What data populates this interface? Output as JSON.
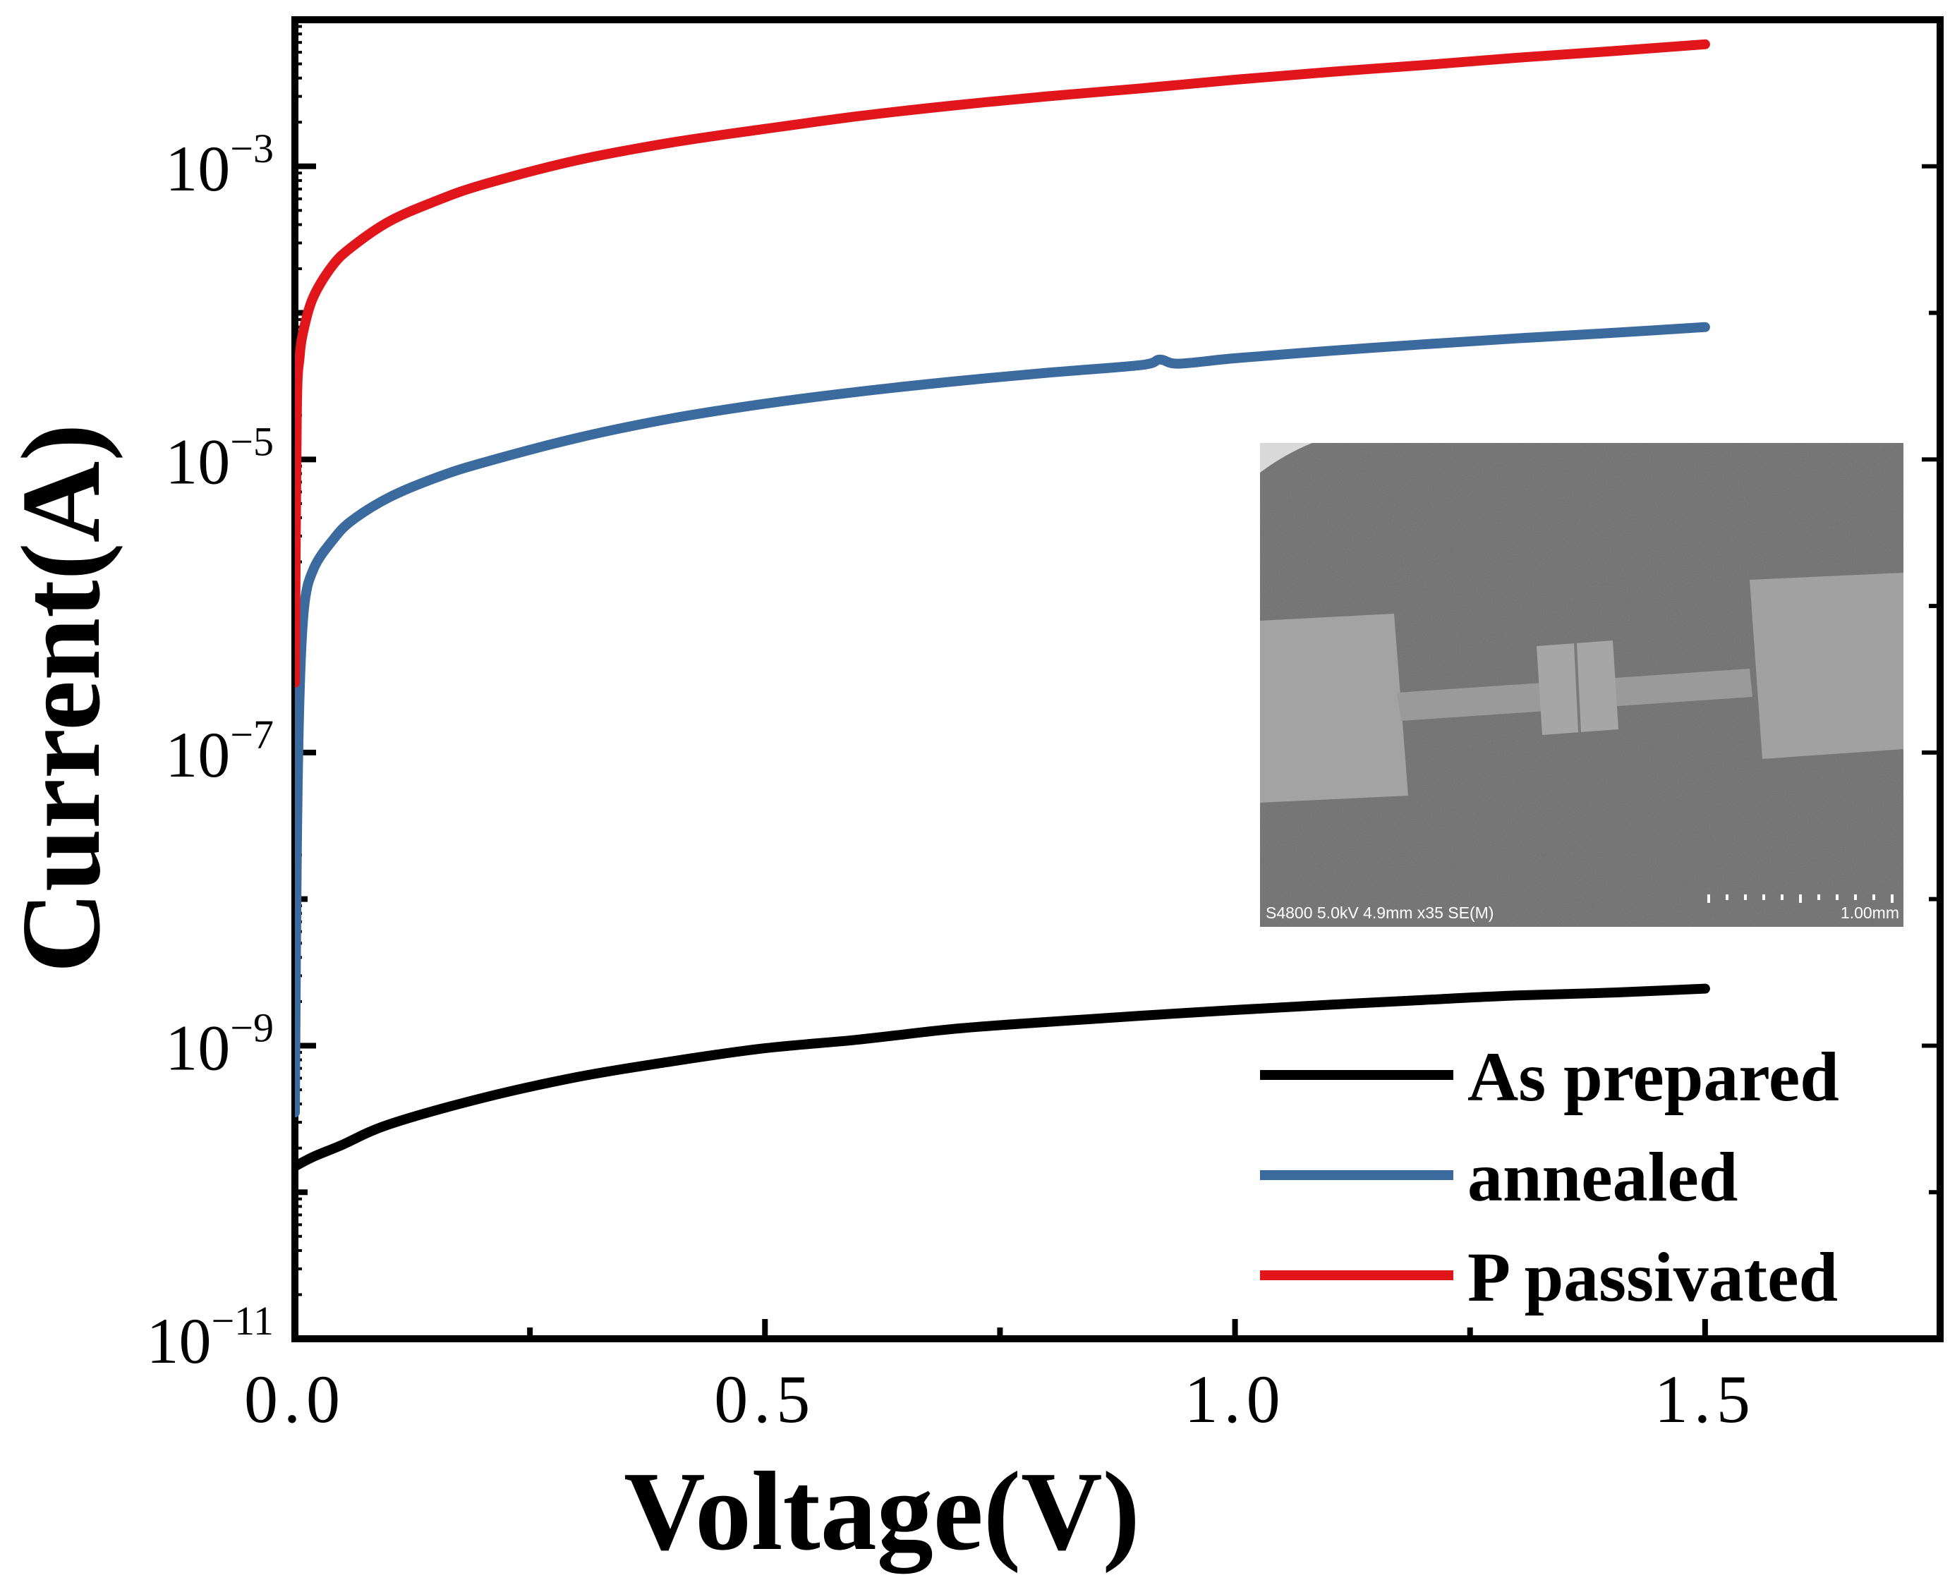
{
  "chart_data": {
    "type": "line",
    "title": "",
    "xlabel": "Voltage(V)",
    "ylabel": "Current(A)",
    "xscale": "linear",
    "yscale": "log",
    "xlim": [
      0.0,
      1.75
    ],
    "ylim": [
      1e-11,
      0.01
    ],
    "x_ticks": [
      0.0,
      0.5,
      1.0,
      1.5
    ],
    "x_tick_labels": [
      "0.0",
      "0.5",
      "1.0",
      "1.5"
    ],
    "y_ticks": [
      1e-11,
      1e-09,
      1e-07,
      1e-05,
      0.001
    ],
    "y_tick_base": "10",
    "y_tick_exponents": [
      "−11",
      "−9",
      "−7",
      "−5",
      "−3"
    ],
    "grid": false,
    "legend_position": "bottom-right",
    "series": [
      {
        "name": "As prepared",
        "color": "#000000",
        "x": [
          0.0,
          0.02,
          0.05,
          0.1,
          0.2,
          0.3,
          0.4,
          0.5,
          0.6,
          0.7,
          0.8,
          0.9,
          1.0,
          1.1,
          1.2,
          1.3,
          1.4,
          1.5
        ],
        "y": [
          1.5e-10,
          1.75e-10,
          2.1e-10,
          2.9e-10,
          4.4e-10,
          6.1e-10,
          7.8e-10,
          9.6e-10,
          1.1e-09,
          1.3e-09,
          1.45e-09,
          1.6e-09,
          1.75e-09,
          1.9e-09,
          2.05e-09,
          2.2e-09,
          2.3e-09,
          2.45e-09
        ]
      },
      {
        "name": "annealed",
        "color": "#3b6a9e",
        "x": [
          0.0,
          0.002,
          0.005,
          0.01,
          0.02,
          0.04,
          0.06,
          0.1,
          0.15,
          0.2,
          0.3,
          0.4,
          0.5,
          0.6,
          0.7,
          0.8,
          0.9,
          0.92,
          0.94,
          1.0,
          1.1,
          1.2,
          1.3,
          1.4,
          1.5
        ],
        "y": [
          3.5e-10,
          2e-08,
          2.5e-07,
          1e-06,
          1.8e-06,
          2.8e-06,
          3.8e-06,
          5.5e-06,
          7.5e-06,
          9.5e-06,
          1.4e-05,
          1.9e-05,
          2.4e-05,
          2.9e-05,
          3.4e-05,
          3.9e-05,
          4.4e-05,
          4.8e-05,
          4.5e-05,
          4.9e-05,
          5.5e-05,
          6.1e-05,
          6.7e-05,
          7.3e-05,
          8e-05
        ]
      },
      {
        "name": "P passivated",
        "color": "#e0161b",
        "x": [
          0.0,
          0.002,
          0.005,
          0.01,
          0.02,
          0.04,
          0.06,
          0.1,
          0.15,
          0.2,
          0.3,
          0.4,
          0.5,
          0.6,
          0.7,
          0.8,
          0.9,
          1.0,
          1.1,
          1.2,
          1.3,
          1.4,
          1.5
        ],
        "y": [
          3e-07,
          2e-05,
          5e-05,
          8e-05,
          0.00013,
          0.00021,
          0.00028,
          0.00042,
          0.00058,
          0.00075,
          0.0011,
          0.00145,
          0.0018,
          0.0022,
          0.0026,
          0.003,
          0.0034,
          0.0039,
          0.0044,
          0.0049,
          0.0055,
          0.0061,
          0.0068
        ]
      }
    ],
    "inset": {
      "kind": "SEM micrograph",
      "caption_left": "S4800 5.0kV 4.9mm x35 SE(M)",
      "scale_bar_label": "1.00mm"
    }
  }
}
